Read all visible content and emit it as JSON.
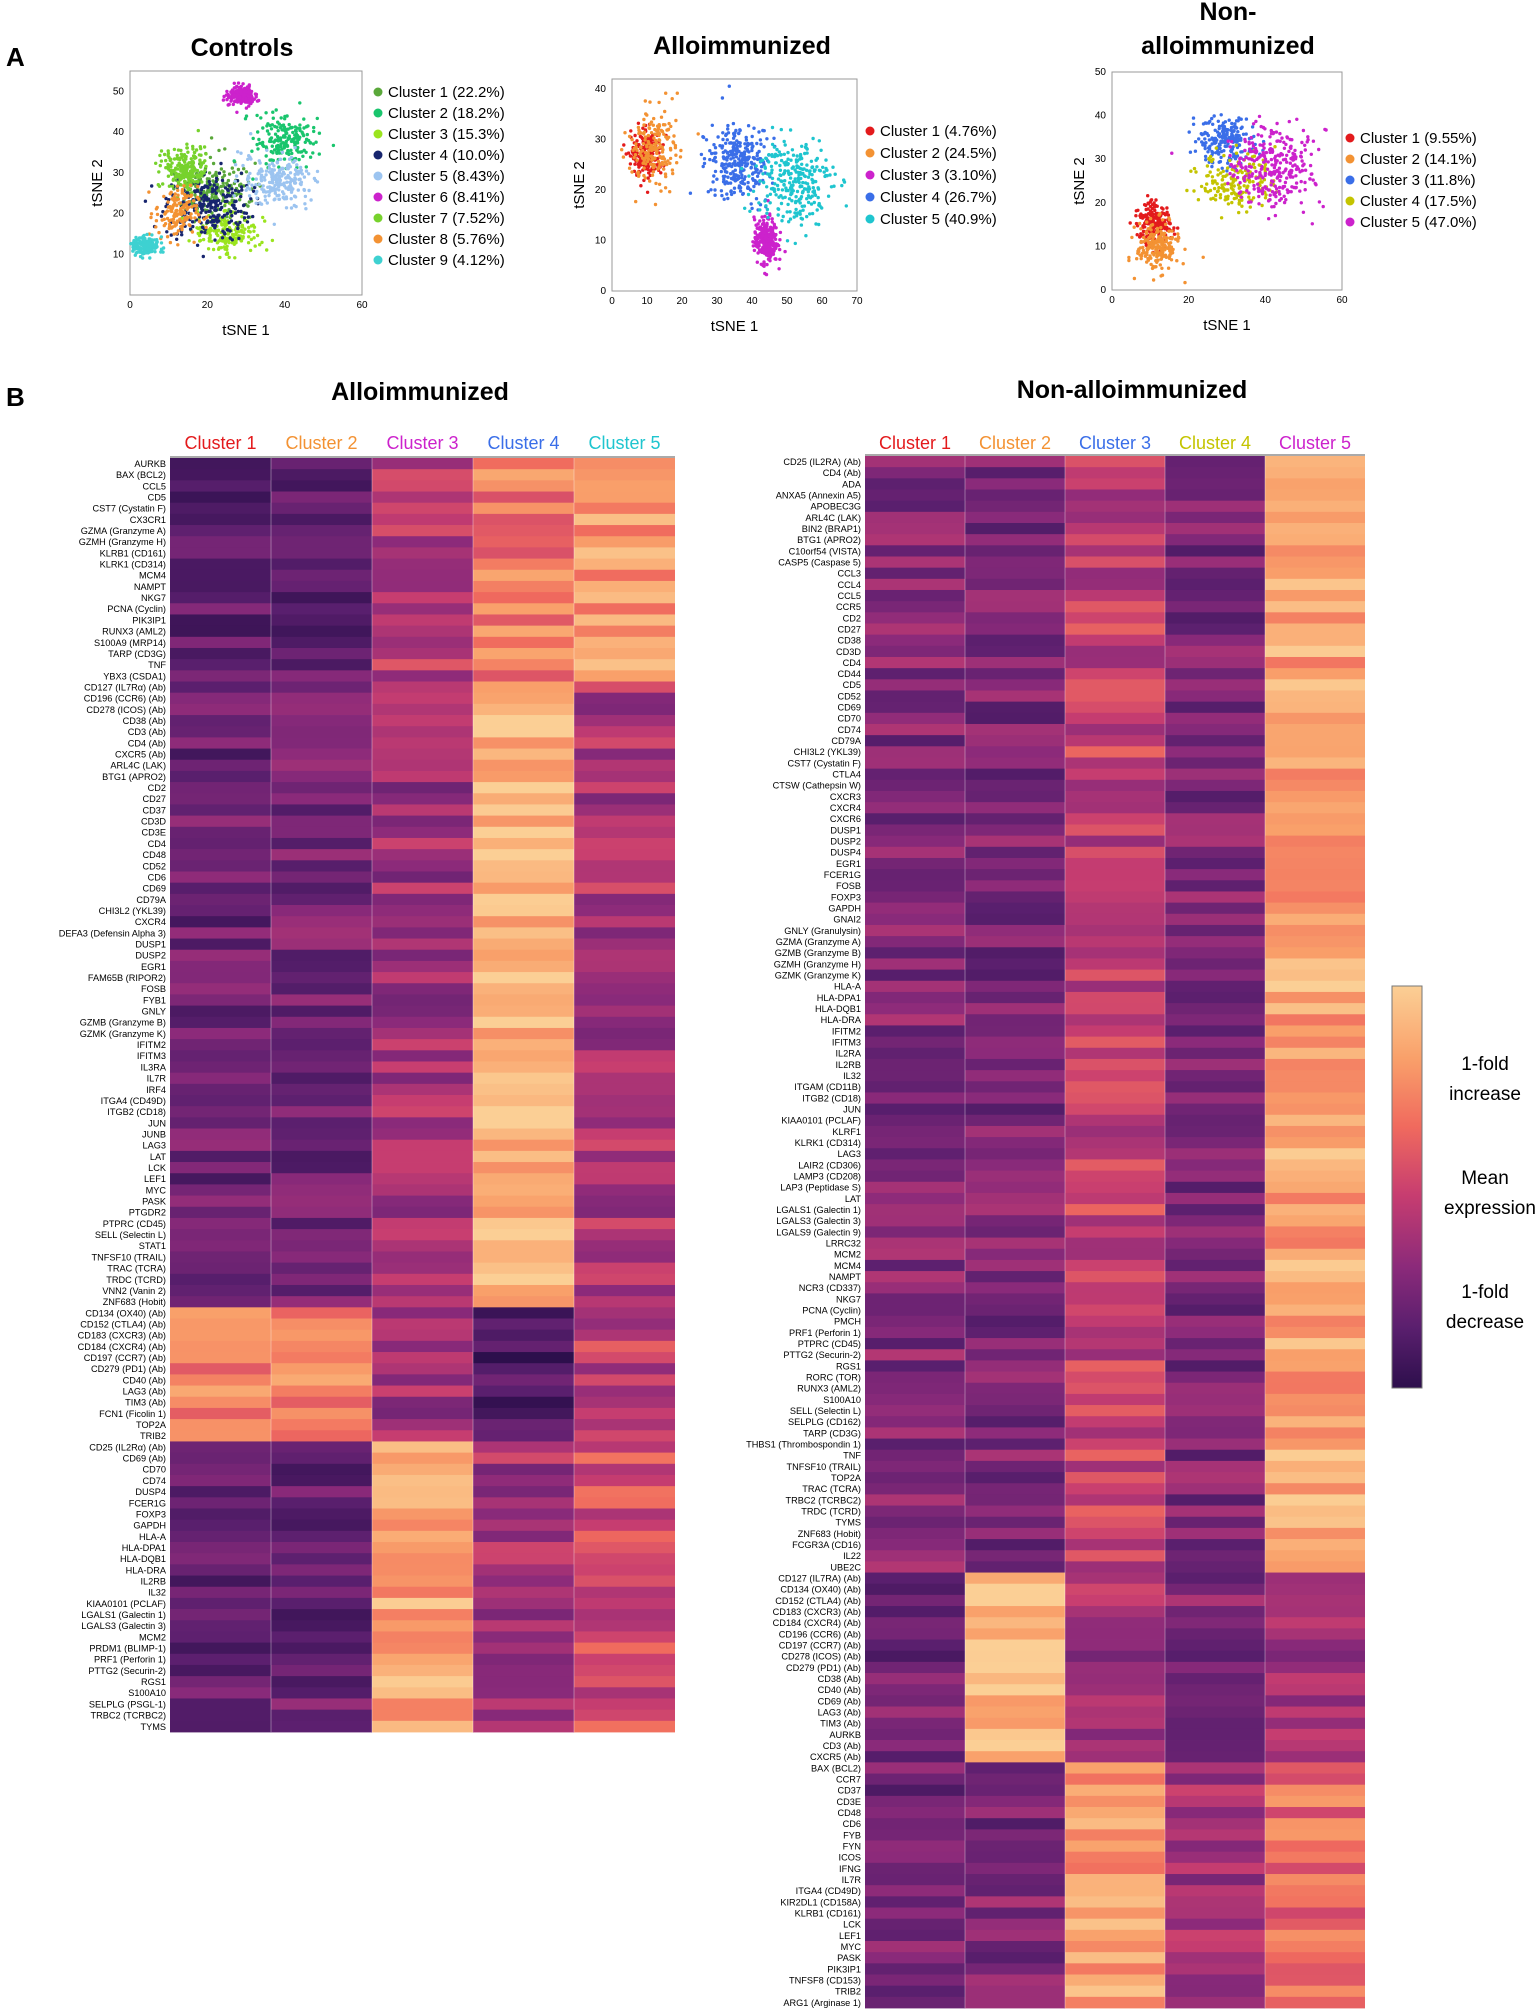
{
  "colors": {
    "ramp": [
      "#2d0f4c",
      "#5a1f6e",
      "#8b2a7a",
      "#c73d70",
      "#f06a5e",
      "#f9a06a",
      "#fbcf95"
    ],
    "clusters_alloimm": [
      "#e31a1c",
      "#f39233",
      "#cc22cc",
      "#3a6ee8",
      "#1fc5cf"
    ],
    "clusters_nonalloimm": [
      "#e31a1c",
      "#f39233",
      "#3a6ee8",
      "#c4c400",
      "#cc22cc"
    ],
    "clusters_controls": [
      "#5aa83a",
      "#19c56d",
      "#9be41e",
      "#17256e",
      "#9cc4f0",
      "#cc22cc",
      "#77d22c",
      "#f39233",
      "#3ed1d1"
    ]
  },
  "panels": {
    "A": "A",
    "B": "B"
  },
  "chart_data": [
    {
      "type": "scatter",
      "title": "Controls",
      "xlabel": "tSNE 1",
      "ylabel": "tSNE 2",
      "xlim": [
        0,
        60
      ],
      "ylim": [
        0,
        55
      ],
      "xticks": [
        "0",
        "20",
        "40",
        "60"
      ],
      "yticks": [
        "10",
        "20",
        "30",
        "40",
        "50"
      ],
      "legend_placement": "right",
      "series": [
        {
          "name": "Cluster 1 (22.2%)",
          "center": [
            22,
            26
          ],
          "spread": [
            8,
            6
          ]
        },
        {
          "name": "Cluster 2 (18.2%)",
          "center": [
            40,
            38
          ],
          "spread": [
            7,
            6
          ]
        },
        {
          "name": "Cluster 3 (15.3%)",
          "center": [
            25,
            15
          ],
          "spread": [
            7,
            5
          ]
        },
        {
          "name": "Cluster 4 (10.0%)",
          "center": [
            20,
            22
          ],
          "spread": [
            10,
            8
          ]
        },
        {
          "name": "Cluster 5 (8.43%)",
          "center": [
            38,
            28
          ],
          "spread": [
            8,
            6
          ]
        },
        {
          "name": "Cluster 6 (8.41%)",
          "center": [
            29,
            49
          ],
          "spread": [
            3,
            2
          ]
        },
        {
          "name": "Cluster 7 (7.52%)",
          "center": [
            14,
            31
          ],
          "spread": [
            5,
            5
          ]
        },
        {
          "name": "Cluster 8 (5.76%)",
          "center": [
            12,
            20
          ],
          "spread": [
            5,
            6
          ]
        },
        {
          "name": "Cluster 9 (4.12%)",
          "center": [
            4,
            12
          ],
          "spread": [
            3,
            2
          ]
        }
      ]
    },
    {
      "type": "scatter",
      "title": "Alloimmunized",
      "xlabel": "tSNE 1",
      "ylabel": "tSNE 2",
      "xlim": [
        0,
        70
      ],
      "ylim": [
        0,
        42
      ],
      "xticks": [
        "0",
        "10",
        "20",
        "30",
        "40",
        "50",
        "60",
        "70"
      ],
      "yticks": [
        "0",
        "10",
        "20",
        "30",
        "40"
      ],
      "legend_placement": "right",
      "series": [
        {
          "name": "Cluster 1 (4.76%)",
          "center": [
            10,
            27
          ],
          "spread": [
            4,
            4
          ]
        },
        {
          "name": "Cluster 2 (24.5%)",
          "center": [
            12,
            28
          ],
          "spread": [
            6,
            7
          ]
        },
        {
          "name": "Cluster 3 (3.10%)",
          "center": [
            44,
            10
          ],
          "spread": [
            3,
            4
          ]
        },
        {
          "name": "Cluster 4 (26.7%)",
          "center": [
            36,
            26
          ],
          "spread": [
            8,
            7
          ]
        },
        {
          "name": "Cluster 5 (40.9%)",
          "center": [
            52,
            22
          ],
          "spread": [
            10,
            8
          ]
        }
      ]
    },
    {
      "type": "scatter",
      "title": "Non-alloimmunized",
      "title_lines": [
        "Non-",
        "alloimmunized"
      ],
      "xlabel": "tSNE 1",
      "ylabel": "tSNE 2",
      "xlim": [
        0,
        60
      ],
      "ylim": [
        0,
        50
      ],
      "xticks": [
        "0",
        "20",
        "40",
        "60"
      ],
      "yticks": [
        "0",
        "10",
        "20",
        "30",
        "40",
        "50"
      ],
      "legend_placement": "right",
      "series": [
        {
          "name": "Cluster 1 (9.55%)",
          "center": [
            11,
            15
          ],
          "spread": [
            4,
            4
          ]
        },
        {
          "name": "Cluster 2 (14.1%)",
          "center": [
            12,
            10
          ],
          "spread": [
            5,
            5
          ]
        },
        {
          "name": "Cluster 3 (11.8%)",
          "center": [
            30,
            34
          ],
          "spread": [
            7,
            5
          ]
        },
        {
          "name": "Cluster 4 (17.5%)",
          "center": [
            33,
            25
          ],
          "spread": [
            9,
            6
          ]
        },
        {
          "name": "Cluster 5 (47.0%)",
          "center": [
            42,
            28
          ],
          "spread": [
            10,
            8
          ]
        }
      ]
    },
    {
      "type": "heatmap",
      "title": "Alloimmunized",
      "columns": [
        "Cluster 1",
        "Cluster 2",
        "Cluster 3",
        "Cluster 4",
        "Cluster 5"
      ],
      "scale": "0 = 1-fold decrease, 0.5 = mean expression, 1 = 1-fold increase",
      "groups": [
        {
          "profile": [
            0.18,
            0.18,
            0.45,
            0.72,
            0.82
          ],
          "genes": [
            "AURKB",
            "BAX (BCL2)",
            "CCL5",
            "CD5",
            "CST7 (Cystatin F)",
            "CX3CR1",
            "GZMA (Granzyme A)",
            "GZMH (Granzyme H)",
            "KLRB1 (CD161)",
            "KLRK1 (CD314)",
            "MCM4",
            "NAMPT",
            "NKG7",
            "PCNA (Cyclin)",
            "PIK3IP1",
            "RUNX3 (AML2)",
            "S100A9 (MRP14)",
            "TARP (CD3G)",
            "TNF",
            "YBX3 (CSDA1)"
          ]
        },
        {
          "profile": [
            0.22,
            0.25,
            0.38,
            0.93,
            0.42
          ],
          "genes": [
            "CD127 (IL7Rα) (Ab)",
            "CD196 (CCR6) (Ab)",
            "CD278 (ICOS) (Ab)",
            "CD38 (Ab)",
            "CD3 (Ab)",
            "CD4 (Ab)",
            "CXCR5 (Ab)",
            "ARL4C (LAK)",
            "BTG1 (APRO2)",
            "CD2",
            "CD27",
            "CD37",
            "CD3D",
            "CD3E",
            "CD4",
            "CD48",
            "CD52",
            "CD6",
            "CD69",
            "CD79A",
            "CHI3L2 (YKL39)",
            "CXCR4",
            "DEFA3 (Defensin Alpha 3)",
            "DUSP1",
            "DUSP2",
            "EGR1",
            "FAM65B (RIPOR2)",
            "FOSB",
            "FYB1",
            "GNLY",
            "GZMB (Granzyme B)",
            "GZMK (Granzyme K)",
            "IFITM2",
            "IFITM3",
            "IL3RA",
            "IL7R",
            "IRF4",
            "ITGA4 (CD49D)",
            "ITGB2 (CD18)",
            "JUN",
            "JUNB",
            "LAG3",
            "LAT",
            "LCK",
            "LEF1",
            "MYC",
            "PASK",
            "PTGDR2",
            "PTPRC (CD45)",
            "SELL (Selectin L)",
            "STAT1",
            "TNFSF10 (TRAIL)",
            "TRAC (TCRA)",
            "TRDC (TCRD)",
            "VNN2 (Vanin 2)",
            "ZNF683 (Hobit)"
          ]
        },
        {
          "profile": [
            0.72,
            0.76,
            0.4,
            0.1,
            0.48
          ],
          "genes": [
            "CD134 (OX40) (Ab)",
            "CD152 (CTLA4) (Ab)",
            "CD183 (CXCR3) (Ab)",
            "CD184 (CXCR4) (Ab)",
            "CD197 (CCR7) (Ab)",
            "CD279 (PD1) (Ab)",
            "CD40 (Ab)",
            "LAG3 (Ab)",
            "TIM3 (Ab)",
            "FCN1 (Ficolin 1)",
            "TOP2A",
            "TRIB2"
          ]
        },
        {
          "profile": [
            0.22,
            0.22,
            0.86,
            0.4,
            0.55
          ],
          "genes": [
            "CD25 (IL2Rα) (Ab)",
            "CD69 (Ab)",
            "CD70",
            "CD74",
            "DUSP4",
            "FCER1G",
            "FOXP3",
            "GAPDH",
            "HLA-A",
            "HLA-DPA1",
            "HLA-DQB1",
            "HLA-DRA",
            "IL2RB",
            "IL32",
            "KIAA0101 (PCLAF)",
            "LGALS1 (Galectin 1)",
            "LGALS3 (Galectin 3)",
            "MCM2",
            "PRDM1 (BLIMP-1)",
            "PRF1 (Perforin 1)",
            "PTTG2 (Securin-2)",
            "RGS1",
            "S100A10",
            "SELPLG (PSGL-1)",
            "TRBC2 (TCRBC2)",
            "TYMS"
          ]
        }
      ]
    },
    {
      "type": "heatmap",
      "title": "Non-alloimmunized",
      "columns": [
        "Cluster 1",
        "Cluster 2",
        "Cluster 3",
        "Cluster 4",
        "Cluster 5"
      ],
      "scale": "0 = 1-fold decrease, 0.5 = mean expression, 1 = 1-fold increase",
      "groups": [
        {
          "profile": [
            0.3,
            0.28,
            0.5,
            0.28,
            0.85
          ],
          "genes": [
            "CD25 (IL2RA) (Ab)",
            "CD4 (Ab)",
            "ADA",
            "ANXA5 (Annexin A5)",
            "APOBEC3G",
            "ARL4C (LAK)",
            "BIN2 (BRAP1)",
            "BTG1 (APRO2)",
            "C10orf54 (VISTA)",
            "CASP5 (Caspase 5)",
            "CCL3",
            "CCL4",
            "CCL5",
            "CCR5",
            "CD2",
            "CD27",
            "CD38",
            "CD3D",
            "CD4",
            "CD44",
            "CD5",
            "CD52",
            "CD69",
            "CD70",
            "CD74",
            "CD79A",
            "CHI3L2 (YKL39)",
            "CST7 (Cystatin F)",
            "CTLA4",
            "CTSW (Cathepsin W)",
            "CXCR3",
            "CXCR4",
            "CXCR6",
            "DUSP1",
            "DUSP2",
            "DUSP4",
            "EGR1",
            "FCER1G",
            "FOSB",
            "FOXP3",
            "GAPDH",
            "GNAI2",
            "GNLY (Granulysin)",
            "GZMA (Granzyme A)",
            "GZMB (Granzyme B)",
            "GZMH (Granzyme H)",
            "GZMK (Granzyme K)",
            "HLA-A",
            "HLA-DPA1",
            "HLA-DQB1",
            "HLA-DRA",
            "IFITM2",
            "IFITM3",
            "IL2RA",
            "IL2RB",
            "IL32",
            "ITGAM (CD11B)",
            "ITGB2 (CD18)",
            "JUN",
            "KIAA0101 (PCLAF)",
            "KLRF1",
            "KLRK1 (CD314)",
            "LAG3",
            "LAIR2 (CD306)",
            "LAMP3 (CD208)",
            "LAP3 (Peptidase S)",
            "LAT",
            "LGALS1 (Galectin 1)",
            "LGALS3 (Galectin 3)",
            "LGALS9 (Galectin 9)",
            "LRRC32",
            "MCM2",
            "MCM4",
            "NAMPT",
            "NCR3 (CD337)",
            "NKG7",
            "PCNA (Cyclin)",
            "PMCH",
            "PRF1 (Perforin 1)",
            "PTPRC (CD45)",
            "PTTG2 (Securin-2)",
            "RGS1",
            "RORC (TOR)",
            "RUNX3 (AML2)",
            "S100A10",
            "SELL (Selectin L)",
            "SELPLG (CD162)",
            "TARP (CD3G)",
            "THBS1 (Thrombospondin 1)",
            "TNF",
            "TNFSF10 (TRAIL)",
            "TOP2A",
            "TRAC (TCRA)",
            "TRBC2 (TCRBC2)",
            "TRDC (TCRD)",
            "TYMS",
            "ZNF683 (Hobit)",
            "FCGR3A (CD16)",
            "IL22",
            "UBE2C"
          ]
        },
        {
          "profile": [
            0.25,
            0.94,
            0.4,
            0.3,
            0.4
          ],
          "genes": [
            "CD127 (IL7RA) (Ab)",
            "CD134 (OX40) (Ab)",
            "CD152 (CTLA4) (Ab)",
            "CD183 (CXCR3) (Ab)",
            "CD184 (CXCR4) (Ab)",
            "CD196 (CCR6) (Ab)",
            "CD197 (CCR7) (Ab)",
            "CD278 (ICOS) (Ab)",
            "CD279 (PD1) (Ab)",
            "CD38 (Ab)",
            "CD40 (Ab)",
            "CD69 (Ab)",
            "LAG3 (Ab)",
            "TIM3 (Ab)",
            "AURKB",
            "CD3 (Ab)",
            "CXCR5 (Ab)"
          ]
        },
        {
          "profile": [
            0.25,
            0.28,
            0.82,
            0.4,
            0.68
          ],
          "genes": [
            "BAX (BCL2)",
            "CCR7",
            "CD37",
            "CD3E",
            "CD48",
            "CD6",
            "FYB",
            "FYN",
            "ICOS",
            "IFNG",
            "IL7R",
            "ITGA4 (CD49D)",
            "KIR2DL1 (CD158A)",
            "KLRB1 (CD161)",
            "LCK",
            "LEF1",
            "MYC",
            "PASK",
            "PIK3IP1",
            "TNFSF8 (CD153)",
            "TRIB2",
            "ARG1 (Arginase 1)"
          ]
        }
      ]
    }
  ],
  "colorbar": {
    "labels": [
      "1-fold",
      "increase",
      "Mean",
      "expression",
      "1-fold",
      "decrease"
    ]
  }
}
